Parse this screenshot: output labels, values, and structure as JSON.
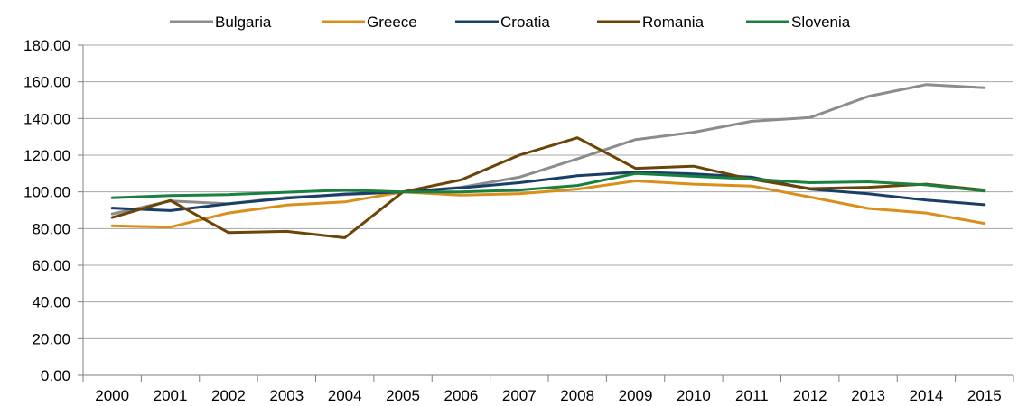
{
  "chart_data": {
    "type": "line",
    "title": "",
    "xlabel": "",
    "ylabel": "",
    "categories": [
      "2000",
      "2001",
      "2002",
      "2003",
      "2004",
      "2005",
      "2006",
      "2007",
      "2008",
      "2009",
      "2010",
      "2011",
      "2012",
      "2013",
      "2014",
      "2015"
    ],
    "ylim": [
      0,
      180
    ],
    "yticks": [
      0,
      20,
      40,
      60,
      80,
      100,
      120,
      140,
      160,
      180
    ],
    "ytick_labels": [
      "0.00",
      "20.00",
      "40.00",
      "60.00",
      "80.00",
      "100.00",
      "120.00",
      "140.00",
      "160.00",
      "180.00"
    ],
    "grid": true,
    "legend_position": "top",
    "series": [
      {
        "name": "Bulgaria",
        "color": "#8c8c8c",
        "values": [
          88,
          95,
          93.5,
          97,
          98.5,
          100,
          102.5,
          108,
          118,
          128.5,
          132.5,
          138.5,
          140.5,
          152,
          158.5,
          156.8
        ]
      },
      {
        "name": "Greece",
        "color": "#d9901a",
        "values": [
          81.5,
          80.8,
          88.5,
          92.8,
          94.5,
          100,
          98.2,
          99,
          101.5,
          106,
          104.2,
          103.2,
          97.2,
          91,
          88.5,
          82.8
        ]
      },
      {
        "name": "Croatia",
        "color": "#1a3f66",
        "values": [
          91.2,
          89.8,
          93.5,
          96.5,
          98.8,
          100,
          102.2,
          105,
          108.8,
          110.8,
          109.8,
          108,
          101.5,
          99,
          95.5,
          93
        ]
      },
      {
        "name": "Romania",
        "color": "#6b4408",
        "values": [
          86,
          95.3,
          77.8,
          78.5,
          75,
          100,
          106.5,
          120,
          129.5,
          112.8,
          114,
          106.8,
          101.8,
          102.5,
          104.2,
          101
        ]
      },
      {
        "name": "Slovenia",
        "color": "#1a8040",
        "values": [
          96.8,
          98,
          98.5,
          99.8,
          101,
          100,
          100,
          101,
          103.5,
          110,
          108.5,
          107,
          105,
          105.5,
          103.8,
          100.5
        ]
      }
    ]
  }
}
